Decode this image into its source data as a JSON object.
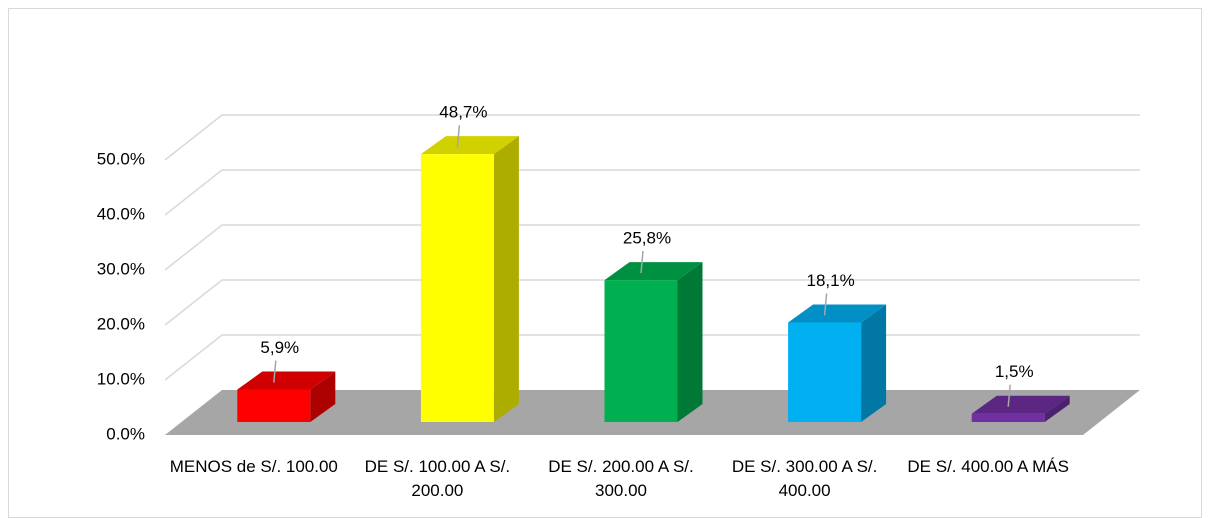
{
  "chart_data": {
    "type": "bar3d",
    "categories": [
      "MENOS  de S/. 100.00",
      "DE S/. 100.00 A S/. 200.00",
      "DE S/. 200.00 A S/. 300.00",
      "DE S/. 300.00 A S/. 400.00",
      "DE S/. 400.00 A MÁS"
    ],
    "values": [
      5.9,
      48.7,
      25.8,
      18.1,
      1.5
    ],
    "value_labels": [
      "5,9%",
      "48,7%",
      "25,8%",
      "18,1%",
      "1,5%"
    ],
    "colors": [
      "#ff0000",
      "#ffff00",
      "#00b050",
      "#00b0f0",
      "#7030a0"
    ],
    "ylim": [
      0,
      50
    ],
    "yticks": [
      {
        "value": 0,
        "label": "0.0%"
      },
      {
        "value": 10,
        "label": "10.0%"
      },
      {
        "value": 20,
        "label": "20.0%"
      },
      {
        "value": 30,
        "label": "30.0%"
      },
      {
        "value": 40,
        "label": "40.0%"
      },
      {
        "value": 50,
        "label": "50.0%"
      }
    ],
    "grid": true
  }
}
